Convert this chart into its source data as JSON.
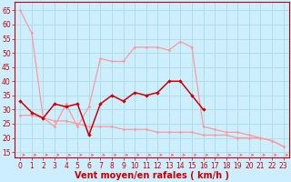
{
  "xlabel": "Vent moyen/en rafales ( km/h )",
  "bg_color": "#cceeff",
  "grid_color": "#aadddd",
  "x_ticks": [
    0,
    1,
    2,
    3,
    4,
    5,
    6,
    7,
    8,
    9,
    10,
    11,
    12,
    13,
    14,
    15,
    16,
    17,
    18,
    19,
    20,
    21,
    22,
    23
  ],
  "ylim": [
    13,
    68
  ],
  "yticks": [
    15,
    20,
    25,
    30,
    35,
    40,
    45,
    50,
    55,
    60,
    65
  ],
  "line1_y": [
    33,
    29,
    27,
    32,
    31,
    32,
    21,
    32,
    35,
    33,
    36,
    35,
    36,
    40,
    40,
    35,
    30,
    null,
    null,
    null,
    null,
    null,
    null,
    null
  ],
  "line2_y": [
    65,
    57,
    27,
    24,
    32,
    24,
    31,
    48,
    47,
    47,
    52,
    52,
    52,
    51,
    54,
    52,
    24,
    23,
    22,
    22,
    21,
    20,
    19,
    17
  ],
  "line3_y": [
    28,
    28,
    27,
    26,
    26,
    25,
    24,
    24,
    24,
    23,
    23,
    23,
    22,
    22,
    22,
    22,
    21,
    21,
    21,
    20,
    20,
    20,
    19,
    17
  ],
  "line1_color": "#cc0000",
  "line2_color": "#ff9999",
  "line3_color": "#ff9999",
  "arrow_color": "#ff6666",
  "xlabel_color": "#cc0000",
  "tick_color": "#cc0000",
  "axis_color": "#cc0000",
  "tick_fontsize": 5.5,
  "xlabel_fontsize": 7.0
}
